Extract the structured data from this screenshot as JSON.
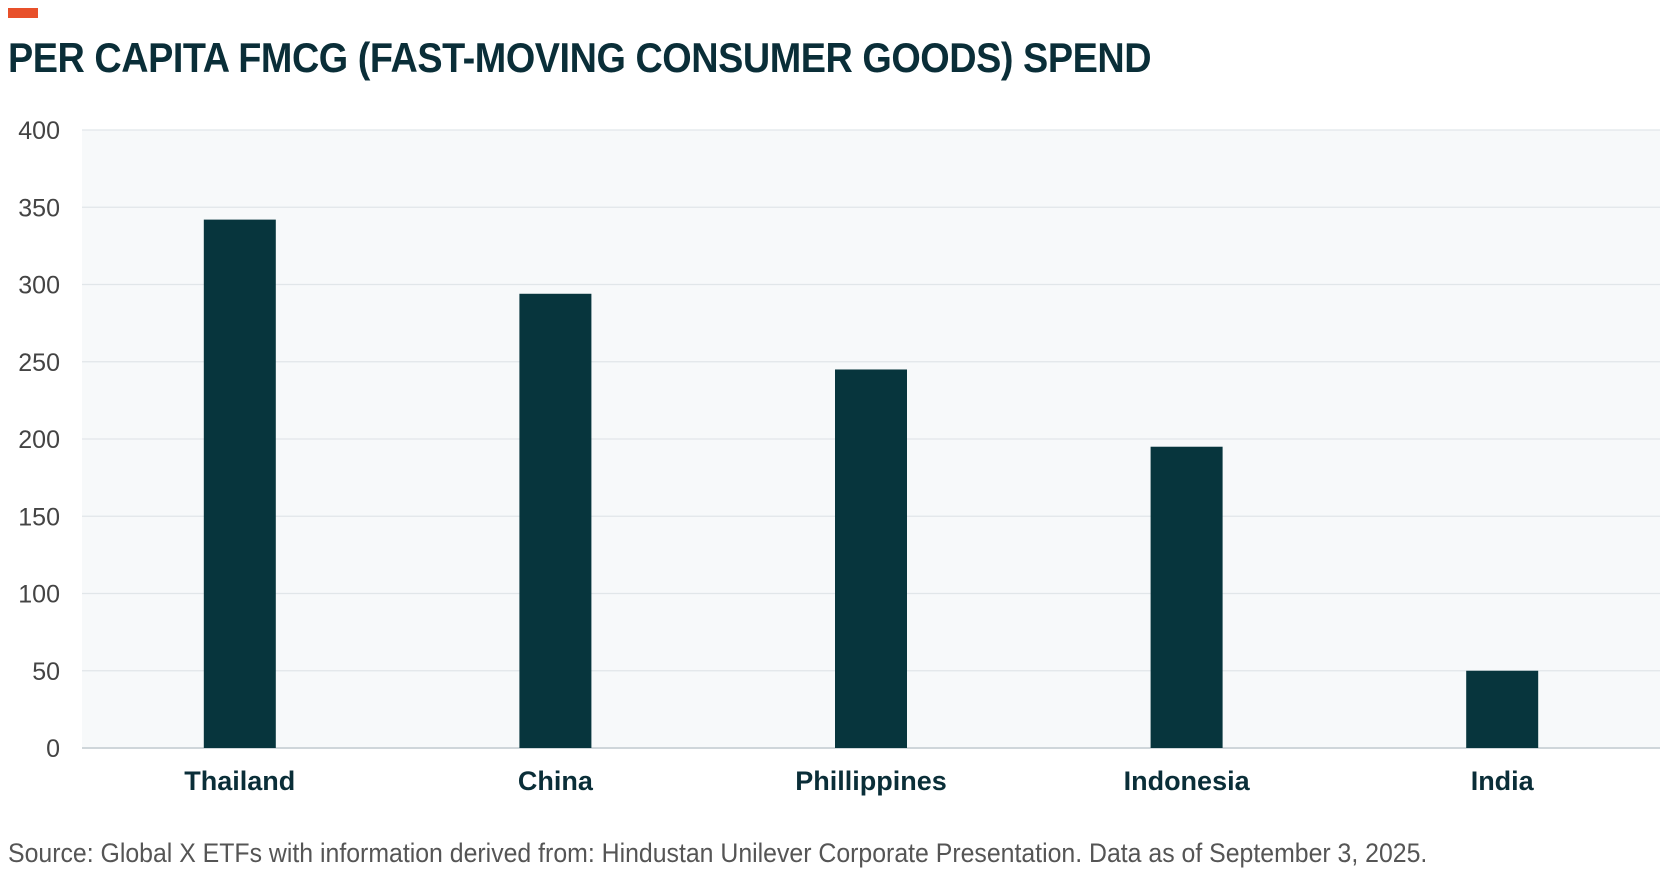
{
  "header": {
    "title": "PER CAPITA FMCG (FAST-MOVING CONSUMER GOODS) SPEND",
    "accent_color": "#e8502a"
  },
  "footer": {
    "source": "Source: Global X ETFs with information derived from: Hindustan Unilever Corporate Presentation. Data as of September 3, 2025."
  },
  "chart_data": {
    "type": "bar",
    "title": "PER CAPITA FMCG (FAST-MOVING CONSUMER GOODS) SPEND",
    "categories": [
      "Thailand",
      "China",
      "Phillippines",
      "Indonesia",
      "India"
    ],
    "values": [
      342,
      294,
      245,
      195,
      50
    ],
    "xlabel": "",
    "ylabel": "",
    "ylim": [
      0,
      400
    ],
    "yticks": [
      0,
      50,
      100,
      150,
      200,
      250,
      300,
      350,
      400
    ],
    "grid": true,
    "legend": "none",
    "bar_color": "#07353d",
    "plot_background": "#f7f9fa"
  }
}
